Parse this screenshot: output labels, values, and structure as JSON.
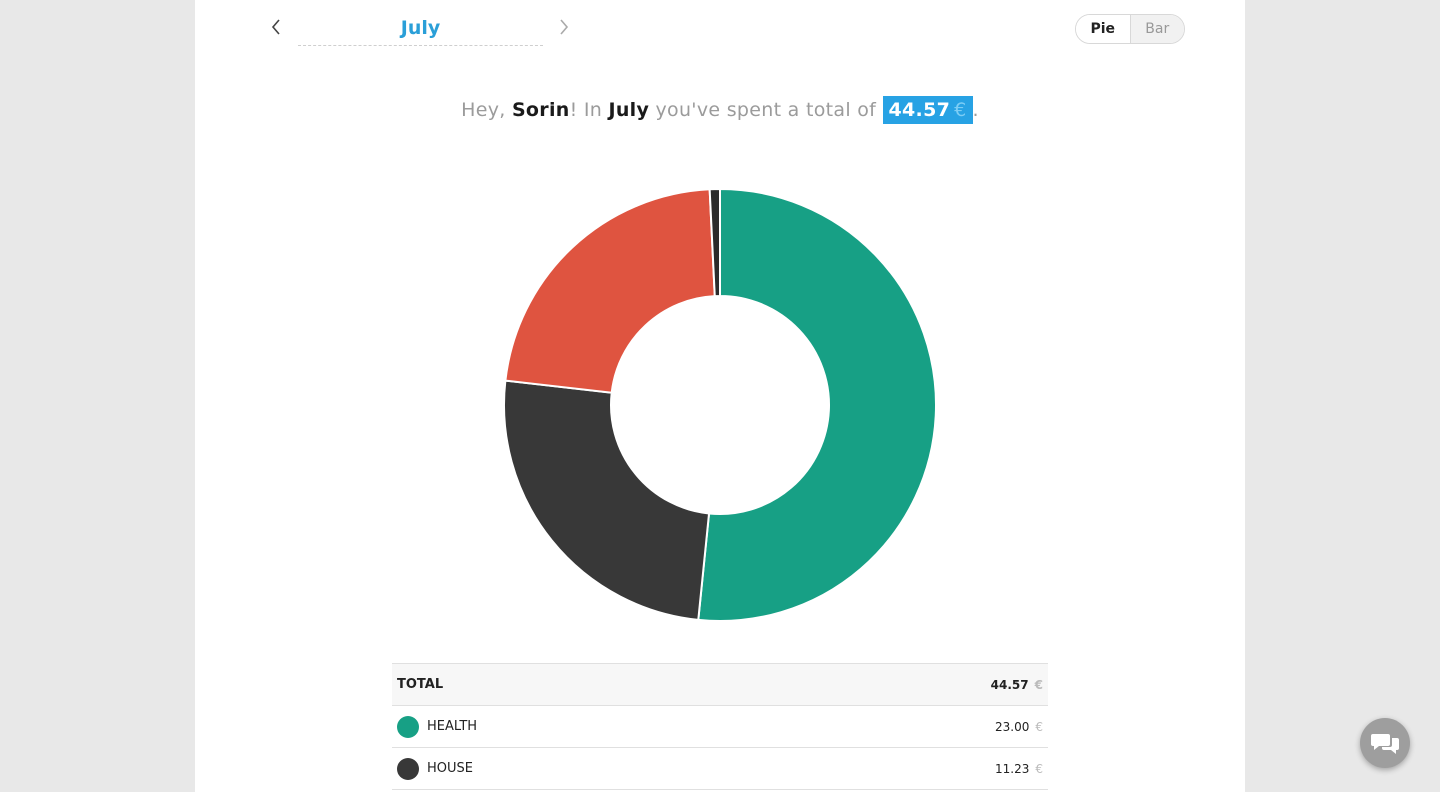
{
  "month_nav": {
    "month": "July"
  },
  "view_toggle": {
    "pie_label": "Pie",
    "bar_label": "Bar",
    "selected": "Pie"
  },
  "summary": {
    "greeting": "Hey, ",
    "user": "Sorin",
    "middle1": "! In ",
    "month": "July",
    "middle2": " you've spent a total of ",
    "total": "44.57",
    "currency": "€",
    "end": "."
  },
  "chart_data": {
    "type": "pie",
    "donut": true,
    "slices": [
      {
        "value": 23.0,
        "color": "#17a085"
      },
      {
        "value": 11.23,
        "color": "#383838"
      },
      {
        "value": 10.0,
        "color": "#df5440"
      },
      {
        "value": 0.34,
        "color": "#2b2b2b"
      }
    ]
  },
  "table": {
    "total_row": {
      "label": "TOTAL",
      "amount": "44.57",
      "currency": "€"
    },
    "rows": [
      {
        "label": "HEALTH",
        "amount": "23.00",
        "currency": "€",
        "color": "#17a085"
      },
      {
        "label": "HOUSE",
        "amount": "11.23",
        "currency": "€",
        "color": "#383838"
      }
    ]
  },
  "chat": {
    "icon": "chat-bubbles-icon"
  }
}
